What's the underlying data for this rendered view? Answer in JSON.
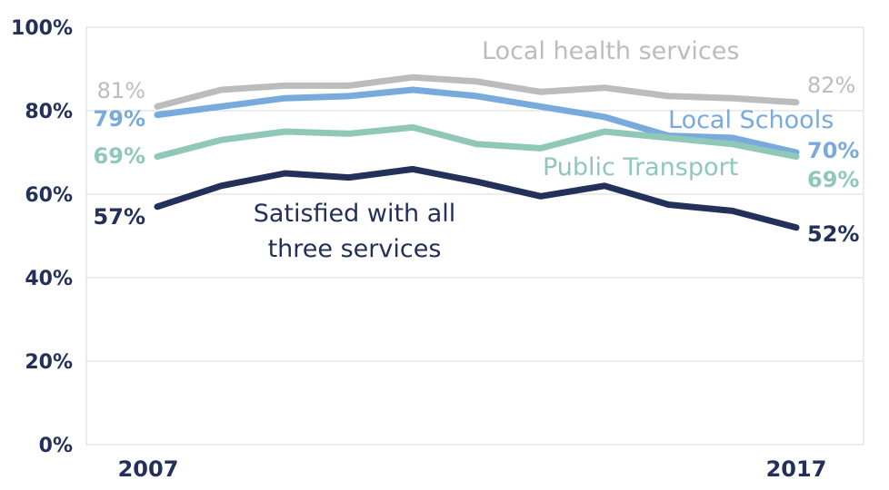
{
  "chart_data": {
    "type": "line",
    "title": "",
    "xlabel": "",
    "ylabel": "",
    "x": [
      2007,
      2008,
      2009,
      2010,
      2011,
      2012,
      2013,
      2014,
      2015,
      2016,
      2017
    ],
    "x_tick_labels": [
      "2007",
      "2017"
    ],
    "ylim": [
      0,
      100
    ],
    "y_ticks": [
      0,
      20,
      40,
      60,
      80,
      100
    ],
    "y_tick_labels": [
      "0%",
      "20%",
      "40%",
      "60%",
      "80%",
      "100%"
    ],
    "grid": true,
    "series": [
      {
        "name": "Local health services",
        "color": "#bcbcbc",
        "values": [
          81,
          85,
          86,
          86,
          88,
          87,
          84.5,
          85.5,
          83.5,
          83,
          82
        ],
        "start_label": "81%",
        "end_label": "82%"
      },
      {
        "name": "Local Schools",
        "color": "#78aadc",
        "values": [
          79,
          81,
          83,
          83.5,
          85,
          83.5,
          81,
          78.5,
          74,
          73.5,
          70
        ],
        "start_label": "79%",
        "end_label": "70%"
      },
      {
        "name": "Public Transport",
        "color": "#8fc8b8",
        "values": [
          69,
          73,
          75,
          74.5,
          76,
          72,
          71,
          75,
          73.5,
          72,
          69
        ],
        "start_label": "69%",
        "end_label": "69%"
      },
      {
        "name": "Satisfied with all three services",
        "name_lines": [
          "Satisfied with all",
          "three services"
        ],
        "color": "#22305a",
        "values": [
          57,
          62,
          65,
          64,
          66,
          63,
          59.5,
          62,
          57.5,
          56,
          52
        ],
        "start_label": "57%",
        "end_label": "52%"
      }
    ]
  }
}
